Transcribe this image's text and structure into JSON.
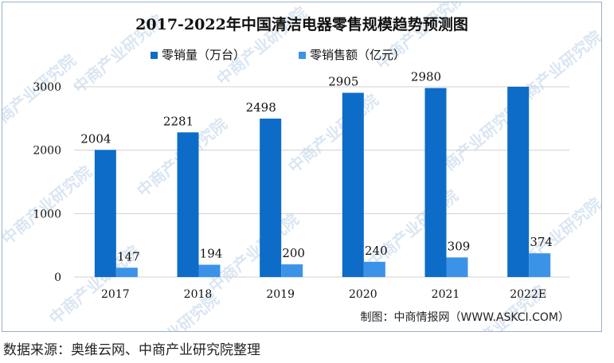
{
  "chart_data": {
    "type": "bar",
    "title": "2017-2022年中国清洁电器零售规模趋势预测图",
    "categories": [
      "2017",
      "2018",
      "2019",
      "2020",
      "2021",
      "2022E"
    ],
    "series": [
      {
        "name": "零销量（万台）",
        "values": [
          2004,
          2281,
          2498,
          2905,
          2980,
          3000
        ],
        "labels": [
          "2004",
          "2281",
          "2498",
          "2905",
          "2980",
          ""
        ],
        "color": "#0d6cc7"
      },
      {
        "name": "零销售额（亿元）",
        "values": [
          147,
          194,
          200,
          240,
          309,
          374
        ],
        "labels": [
          "147",
          "194",
          "200",
          "240",
          "309",
          "374"
        ],
        "color": "#3b93e8"
      }
    ],
    "yticks": [
      "0",
      "1000",
      "2000",
      "3000"
    ],
    "ylim": [
      0,
      3000
    ],
    "grid": true,
    "legend_position": "top-center"
  },
  "credit": "制图：中商情报网（WWW.ASKCI.COM）",
  "source": "数据来源：奥维云网、中商产业研究院整理",
  "watermark": "中商产业研究院"
}
